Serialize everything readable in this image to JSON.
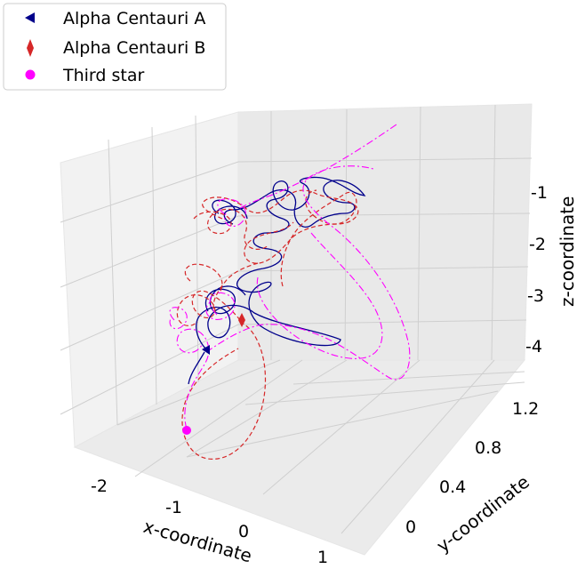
{
  "chart_data": {
    "type": "line",
    "title": "",
    "xlabel": "x-coordinate",
    "ylabel": "y-coordinate",
    "zlabel": "z-coordinate",
    "xticks": [
      "-2",
      "-1",
      "0",
      "1"
    ],
    "yticks": [
      "0",
      "0.4",
      "0.8",
      "1.2"
    ],
    "zticks": [
      "-1",
      "-2",
      "-3",
      "-4"
    ],
    "xlim": [
      -2.5,
      1.5
    ],
    "ylim": [
      -0.2,
      1.3
    ],
    "zlim": [
      -4.6,
      0.2
    ],
    "grid": true,
    "legend_position": "top-left",
    "series": [
      {
        "name": "Alpha Centauri A",
        "color": "#00008b",
        "linestyle": "solid",
        "marker": "triangle-left",
        "start": {
          "x": -1.2,
          "y": 0.55,
          "z": -4.0
        }
      },
      {
        "name": "Alpha Centauri B",
        "color": "#d62728",
        "linestyle": "dashed",
        "marker": "thin-diamond",
        "start": {
          "x": -0.4,
          "y": 0.65,
          "z": -3.6
        }
      },
      {
        "name": "Third star",
        "color": "#ff00ff",
        "linestyle": "dash-dot",
        "marker": "circle",
        "start": {
          "x": -1.2,
          "y": 0.05,
          "z": -4.6
        }
      }
    ]
  }
}
